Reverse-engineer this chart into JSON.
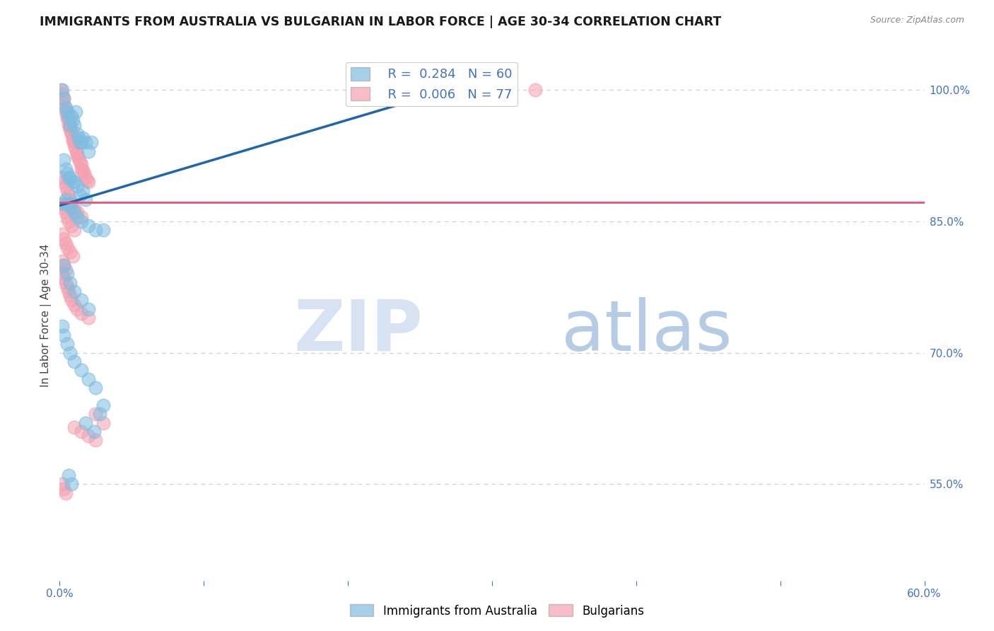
{
  "title": "IMMIGRANTS FROM AUSTRALIA VS BULGARIAN IN LABOR FORCE | AGE 30-34 CORRELATION CHART",
  "source": "Source: ZipAtlas.com",
  "ylabel": "In Labor Force | Age 30-34",
  "xlim": [
    0.0,
    0.6
  ],
  "ylim": [
    0.44,
    1.045
  ],
  "xtick_positions": [
    0.0,
    0.1,
    0.2,
    0.3,
    0.4,
    0.5,
    0.6
  ],
  "xticklabels": [
    "0.0%",
    "",
    "",
    "",
    "",
    "",
    "60.0%"
  ],
  "yticks_right": [
    1.0,
    0.85,
    0.7,
    0.55
  ],
  "ytick_right_labels": [
    "100.0%",
    "85.0%",
    "70.0%",
    "55.0%"
  ],
  "series1_label": "Immigrants from Australia",
  "series1_color": "#7fbde0",
  "series1_R": 0.284,
  "series1_N": 60,
  "series2_label": "Bulgarians",
  "series2_color": "#f4a0b0",
  "series2_R": 0.006,
  "series2_N": 77,
  "trend1_x": [
    0.0,
    0.28
  ],
  "trend1_y": [
    0.868,
    1.005
  ],
  "trend2_y": 0.872,
  "circle_size": 180,
  "aus_x": [
    0.002,
    0.003,
    0.004,
    0.005,
    0.006,
    0.007,
    0.008,
    0.009,
    0.01,
    0.011,
    0.012,
    0.013,
    0.014,
    0.015,
    0.016,
    0.018,
    0.02,
    0.022,
    0.003,
    0.004,
    0.005,
    0.006,
    0.007,
    0.009,
    0.01,
    0.012,
    0.014,
    0.016,
    0.018,
    0.003,
    0.004,
    0.005,
    0.007,
    0.008,
    0.01,
    0.012,
    0.015,
    0.02,
    0.025,
    0.03,
    0.003,
    0.005,
    0.007,
    0.01,
    0.015,
    0.02,
    0.002,
    0.003,
    0.005,
    0.007,
    0.01,
    0.015,
    0.02,
    0.025,
    0.03,
    0.028,
    0.018,
    0.024,
    0.008,
    0.006
  ],
  "aus_y": [
    1.0,
    0.99,
    0.98,
    0.975,
    0.97,
    0.96,
    0.97,
    0.965,
    0.96,
    0.975,
    0.95,
    0.945,
    0.94,
    0.94,
    0.945,
    0.94,
    0.93,
    0.94,
    0.92,
    0.91,
    0.905,
    0.9,
    0.9,
    0.895,
    0.895,
    0.89,
    0.88,
    0.885,
    0.875,
    0.87,
    0.875,
    0.87,
    0.87,
    0.865,
    0.86,
    0.855,
    0.85,
    0.845,
    0.84,
    0.84,
    0.8,
    0.79,
    0.78,
    0.77,
    0.76,
    0.75,
    0.73,
    0.72,
    0.71,
    0.7,
    0.69,
    0.68,
    0.67,
    0.66,
    0.64,
    0.63,
    0.62,
    0.61,
    0.55,
    0.56
  ],
  "bul_x": [
    0.001,
    0.002,
    0.003,
    0.003,
    0.004,
    0.004,
    0.005,
    0.005,
    0.006,
    0.006,
    0.007,
    0.007,
    0.008,
    0.008,
    0.009,
    0.009,
    0.01,
    0.01,
    0.011,
    0.012,
    0.012,
    0.013,
    0.014,
    0.015,
    0.015,
    0.016,
    0.017,
    0.018,
    0.019,
    0.02,
    0.002,
    0.003,
    0.004,
    0.005,
    0.006,
    0.007,
    0.008,
    0.01,
    0.012,
    0.015,
    0.002,
    0.003,
    0.004,
    0.005,
    0.006,
    0.008,
    0.01,
    0.002,
    0.003,
    0.004,
    0.005,
    0.007,
    0.009,
    0.002,
    0.003,
    0.004,
    0.002,
    0.003,
    0.004,
    0.005,
    0.006,
    0.007,
    0.008,
    0.01,
    0.012,
    0.015,
    0.02,
    0.025,
    0.03,
    0.01,
    0.015,
    0.02,
    0.025,
    0.33,
    0.002,
    0.003,
    0.004
  ],
  "bul_y": [
    1.0,
    0.995,
    0.99,
    0.985,
    0.978,
    0.975,
    0.97,
    0.968,
    0.965,
    0.96,
    0.958,
    0.955,
    0.952,
    0.95,
    0.945,
    0.942,
    0.94,
    0.936,
    0.932,
    0.928,
    0.925,
    0.922,
    0.918,
    0.915,
    0.91,
    0.908,
    0.905,
    0.9,
    0.897,
    0.895,
    0.9,
    0.895,
    0.89,
    0.885,
    0.88,
    0.875,
    0.87,
    0.865,
    0.86,
    0.855,
    0.87,
    0.865,
    0.86,
    0.855,
    0.85,
    0.845,
    0.84,
    0.835,
    0.83,
    0.825,
    0.82,
    0.815,
    0.81,
    0.805,
    0.8,
    0.795,
    0.79,
    0.785,
    0.78,
    0.775,
    0.77,
    0.765,
    0.76,
    0.755,
    0.75,
    0.745,
    0.74,
    0.63,
    0.62,
    0.615,
    0.61,
    0.605,
    0.6,
    1.0,
    0.55,
    0.545,
    0.54
  ]
}
